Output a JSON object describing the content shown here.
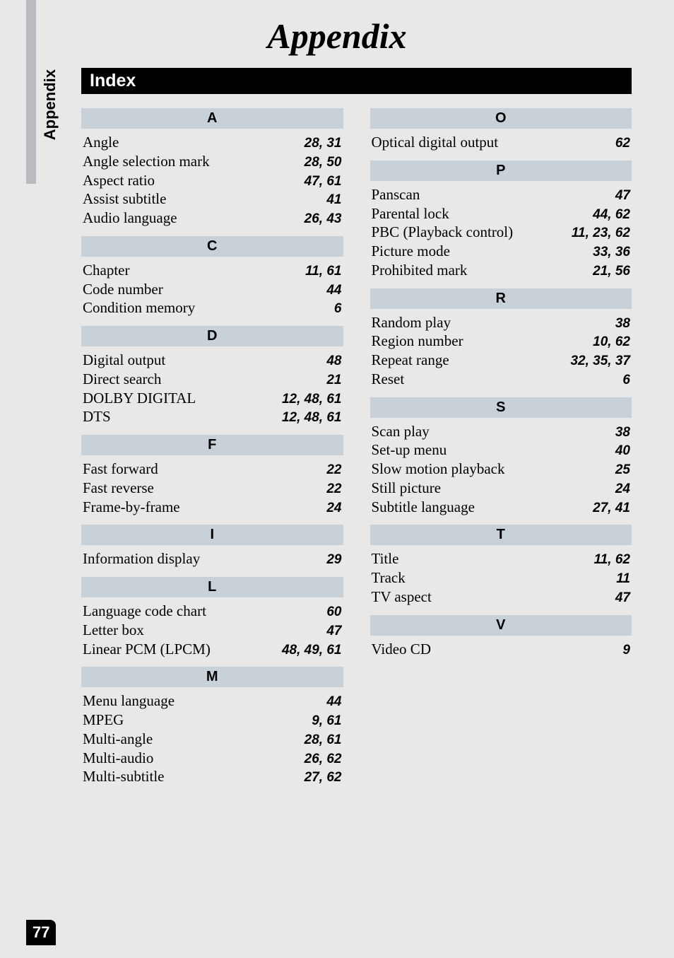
{
  "page": {
    "title": "Appendix",
    "sideTab": "Appendix",
    "indexHeader": "Index",
    "pageNumber": "77"
  },
  "colors": {
    "pageBg": "#e8e8e8",
    "headerBg": "#000000",
    "headerText": "#ffffff",
    "letterBg": "#c8d0d8",
    "sideBar": "#b8bcc0"
  },
  "leftColumn": [
    {
      "letter": "A",
      "entries": [
        {
          "term": "Angle",
          "pages": "28, 31"
        },
        {
          "term": "Angle selection mark",
          "pages": "28, 50"
        },
        {
          "term": "Aspect ratio",
          "pages": "47, 61"
        },
        {
          "term": "Assist subtitle",
          "pages": "41"
        },
        {
          "term": "Audio language",
          "pages": "26, 43"
        }
      ]
    },
    {
      "letter": "C",
      "entries": [
        {
          "term": "Chapter",
          "pages": "11, 61"
        },
        {
          "term": "Code number",
          "pages": "44"
        },
        {
          "term": "Condition memory",
          "pages": "6"
        }
      ]
    },
    {
      "letter": "D",
      "entries": [
        {
          "term": "Digital output",
          "pages": "48"
        },
        {
          "term": "Direct search",
          "pages": "21"
        },
        {
          "term": "DOLBY DIGITAL",
          "pages": "12, 48, 61"
        },
        {
          "term": "DTS",
          "pages": "12, 48, 61"
        }
      ]
    },
    {
      "letter": "F",
      "entries": [
        {
          "term": "Fast forward",
          "pages": "22"
        },
        {
          "term": "Fast reverse",
          "pages": "22"
        },
        {
          "term": "Frame-by-frame",
          "pages": "24"
        }
      ]
    },
    {
      "letter": "I",
      "entries": [
        {
          "term": "Information display",
          "pages": "29"
        }
      ]
    },
    {
      "letter": "L",
      "entries": [
        {
          "term": "Language code chart",
          "pages": "60"
        },
        {
          "term": "Letter box",
          "pages": "47"
        },
        {
          "term": "Linear PCM (LPCM)",
          "pages": "48, 49, 61"
        }
      ]
    },
    {
      "letter": "M",
      "entries": [
        {
          "term": "Menu language",
          "pages": "44"
        },
        {
          "term": "MPEG",
          "pages": "9, 61"
        },
        {
          "term": "Multi-angle",
          "pages": "28, 61"
        },
        {
          "term": "Multi-audio",
          "pages": "26, 62"
        },
        {
          "term": "Multi-subtitle",
          "pages": "27, 62"
        }
      ]
    }
  ],
  "rightColumn": [
    {
      "letter": "O",
      "entries": [
        {
          "term": "Optical digital output",
          "pages": "62"
        }
      ]
    },
    {
      "letter": "P",
      "entries": [
        {
          "term": "Panscan",
          "pages": "47"
        },
        {
          "term": "Parental lock",
          "pages": "44, 62"
        },
        {
          "term": "PBC (Playback control)",
          "pages": "11, 23, 62"
        },
        {
          "term": "Picture mode",
          "pages": "33, 36"
        },
        {
          "term": "Prohibited mark",
          "pages": "21, 56"
        }
      ]
    },
    {
      "letter": "R",
      "entries": [
        {
          "term": "Random play",
          "pages": "38"
        },
        {
          "term": "Region number",
          "pages": "10, 62"
        },
        {
          "term": "Repeat range",
          "pages": "32, 35, 37"
        },
        {
          "term": "Reset",
          "pages": "6"
        }
      ]
    },
    {
      "letter": "S",
      "entries": [
        {
          "term": "Scan play",
          "pages": "38"
        },
        {
          "term": "Set-up menu",
          "pages": "40"
        },
        {
          "term": "Slow motion playback",
          "pages": "25"
        },
        {
          "term": "Still picture",
          "pages": "24"
        },
        {
          "term": "Subtitle language",
          "pages": "27, 41"
        }
      ]
    },
    {
      "letter": "T",
      "entries": [
        {
          "term": "Title",
          "pages": "11, 62"
        },
        {
          "term": "Track",
          "pages": "11"
        },
        {
          "term": "TV aspect",
          "pages": "47"
        }
      ]
    },
    {
      "letter": "V",
      "entries": [
        {
          "term": "Video CD",
          "pages": "9"
        }
      ]
    }
  ]
}
